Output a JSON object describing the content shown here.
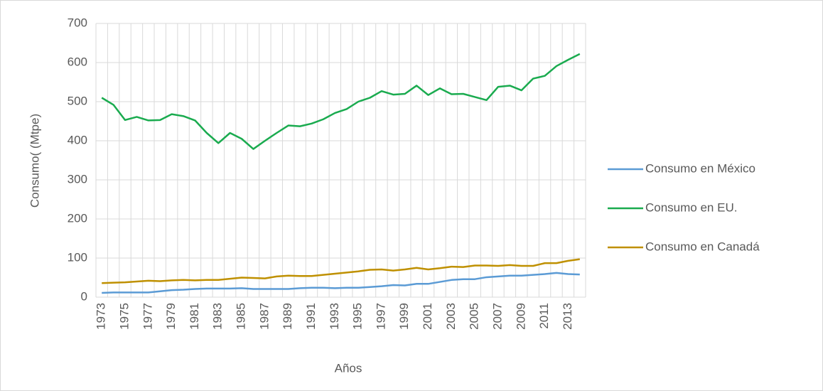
{
  "chart_data": {
    "type": "line",
    "x_label": "Años",
    "y_label": "Consumo( (Mtpe)",
    "categories": [
      "1973",
      null,
      "1975",
      null,
      "1977",
      null,
      "1979",
      null,
      "1981",
      null,
      "1983",
      null,
      "1985",
      null,
      "1987",
      null,
      "1989",
      null,
      "1991",
      null,
      "1993",
      null,
      "1995",
      null,
      "1997",
      null,
      "1999",
      null,
      "2001",
      null,
      "2003",
      null,
      "2005",
      null,
      "2007",
      null,
      "2009",
      null,
      "2011",
      null,
      "2013",
      null
    ],
    "series": [
      {
        "name": "Consumo en México",
        "color": "#5b9bd5",
        "values": [
          11,
          12,
          12,
          12,
          12,
          15,
          18,
          19,
          21,
          22,
          22,
          22,
          23,
          21,
          21,
          21,
          21,
          23,
          24,
          24,
          23,
          24,
          24,
          26,
          28,
          31,
          30,
          34,
          34,
          39,
          44,
          46,
          46,
          51,
          53,
          55,
          55,
          57,
          59,
          62,
          59,
          58
        ]
      },
      {
        "name": "Consumo en EU.",
        "color": "#1aab4f",
        "values": [
          510,
          492,
          453,
          461,
          452,
          453,
          468,
          463,
          452,
          420,
          394,
          420,
          405,
          379,
          400,
          420,
          439,
          437,
          444,
          455,
          471,
          481,
          500,
          510,
          527,
          518,
          520,
          541,
          517,
          534,
          519,
          520,
          512,
          504,
          538,
          541,
          529,
          559,
          566,
          591,
          607,
          622
        ]
      },
      {
        "name": "Consumo en Canadá",
        "color": "#bf9000",
        "values": [
          36,
          37,
          38,
          40,
          42,
          41,
          43,
          44,
          43,
          44,
          44,
          47,
          50,
          49,
          48,
          53,
          55,
          54,
          54,
          57,
          60,
          63,
          66,
          70,
          71,
          68,
          71,
          75,
          71,
          74,
          78,
          77,
          81,
          81,
          80,
          82,
          80,
          80,
          87,
          87,
          93,
          97
        ]
      }
    ],
    "ylim": [
      0,
      700
    ],
    "yticks": [
      0,
      100,
      200,
      300,
      400,
      500,
      600,
      700
    ],
    "grid": true,
    "legend": "right"
  }
}
